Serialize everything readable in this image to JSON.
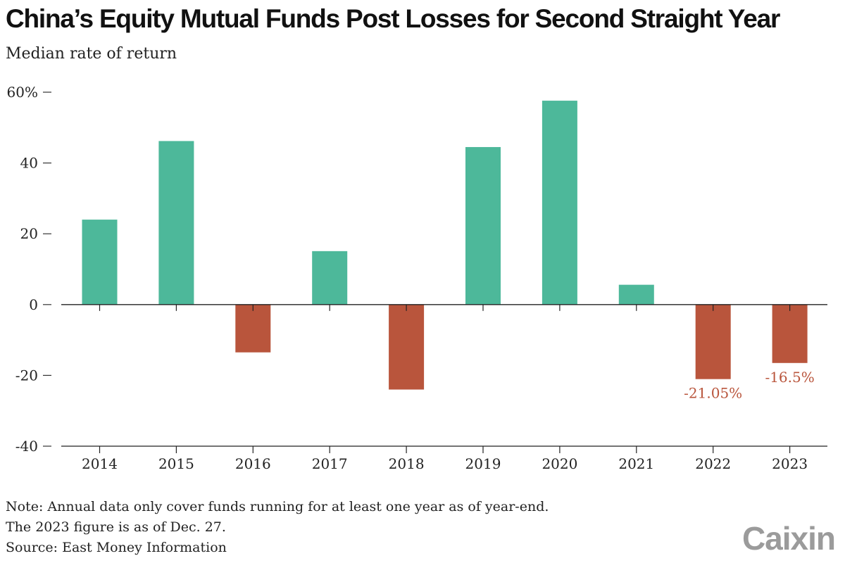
{
  "chart_data": {
    "type": "bar",
    "title": "China’s Equity Mutual Funds Post Losses for Second Straight Year",
    "subtitle": "Median rate of return",
    "categories": [
      "2014",
      "2015",
      "2016",
      "2017",
      "2018",
      "2019",
      "2020",
      "2021",
      "2022",
      "2023"
    ],
    "values": [
      24.0,
      46.2,
      -13.5,
      15.1,
      -24.0,
      44.5,
      57.6,
      5.6,
      -21.05,
      -16.5
    ],
    "ylim": [
      -40,
      60
    ],
    "yticks": [
      60,
      40,
      20,
      0,
      -20,
      -40
    ],
    "ytick_labels": [
      "60%",
      "40",
      "20",
      "0",
      "-20",
      "-40"
    ],
    "data_labels": [
      {
        "category": "2022",
        "text": "-21.05%"
      },
      {
        "category": "2023",
        "text": "-16.5%"
      }
    ],
    "colors": {
      "positive": "#4db89a",
      "negative": "#b9553c",
      "annotation": "#b9553c"
    },
    "grid": false,
    "legend": "none"
  },
  "notes": [
    "Note: Annual data only cover funds running for at least one year as of year-end.",
    "The 2023 figure is as of Dec. 27.",
    "Source: East Money Information"
  ],
  "logo": "Caixin"
}
